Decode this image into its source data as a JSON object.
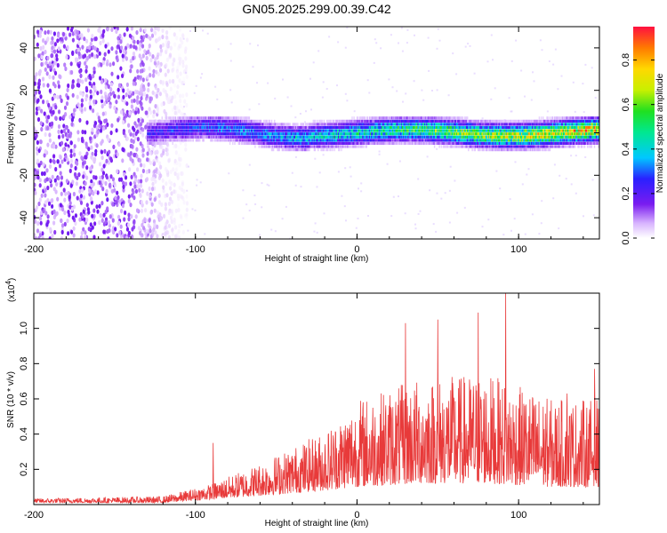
{
  "title": "GN05.2025.299.00.39.C42",
  "chart_data": [
    {
      "type": "heatmap",
      "xlabel": "Height of straight line (km)",
      "ylabel": "Frequency (Hz)",
      "xlim": [
        -200,
        150
      ],
      "ylim": [
        -50,
        50
      ],
      "xticks": [
        -200,
        -100,
        0,
        100
      ],
      "yticks": [
        -40,
        -20,
        0,
        20,
        40
      ],
      "band_center_hz": 0,
      "band_halfwidth_hz": 5,
      "noise_region_x": [
        -200,
        -110
      ],
      "amplitude_trend": [
        {
          "x": -130,
          "amp": 0.25
        },
        {
          "x": -50,
          "amp": 0.4
        },
        {
          "x": 0,
          "amp": 0.5
        },
        {
          "x": 100,
          "amp": 0.75
        },
        {
          "x": 150,
          "amp": 0.85
        }
      ],
      "colorbar": {
        "label": "Normalized spectral amplitude",
        "range": [
          0,
          0.95
        ],
        "ticks": [
          "0.0",
          "0.2",
          "0.4",
          "0.6",
          "0.8"
        ]
      }
    },
    {
      "type": "line",
      "xlabel": "Height of straight line (km)",
      "ylabel": "SNR (10 * v/v)",
      "scale_label": "(x10",
      "scale_exp": "4",
      "scale_close": ")",
      "xlim": [
        -200,
        150
      ],
      "ylim": [
        0,
        1.2
      ],
      "xticks": [
        -200,
        -100,
        0,
        100
      ],
      "yticks": [
        "0.2",
        "0.4",
        "0.6",
        "0.8",
        "1.0"
      ],
      "color": "#e83a3a",
      "envelope": [
        {
          "x": -200,
          "base": 0.01,
          "peak": 0.03
        },
        {
          "x": -120,
          "base": 0.01,
          "peak": 0.04
        },
        {
          "x": -90,
          "base": 0.03,
          "peak": 0.1
        },
        {
          "x": -60,
          "base": 0.05,
          "peak": 0.2
        },
        {
          "x": -20,
          "base": 0.08,
          "peak": 0.35
        },
        {
          "x": 0,
          "base": 0.1,
          "peak": 0.5
        },
        {
          "x": 40,
          "base": 0.12,
          "peak": 0.6
        },
        {
          "x": 80,
          "base": 0.12,
          "peak": 0.62
        },
        {
          "x": 120,
          "base": 0.1,
          "peak": 0.5
        },
        {
          "x": 150,
          "base": 0.1,
          "peak": 0.5
        }
      ],
      "peaks": [
        {
          "x": -89,
          "y": 0.35
        },
        {
          "x": 30,
          "y": 1.03
        },
        {
          "x": 50,
          "y": 1.05
        },
        {
          "x": 75,
          "y": 1.09
        },
        {
          "x": 92,
          "y": 1.2
        },
        {
          "x": 130,
          "y": 0.63
        },
        {
          "x": 147,
          "y": 0.77
        }
      ]
    }
  ]
}
